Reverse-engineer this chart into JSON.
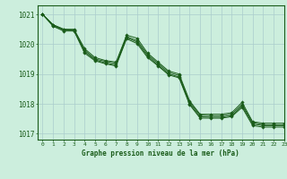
{
  "title": "Graphe pression niveau de la mer (hPa)",
  "bg_color": "#cceedd",
  "grid_color": "#aacccc",
  "line_color": "#1a5c1a",
  "xlim": [
    -0.5,
    23
  ],
  "ylim": [
    1016.8,
    1021.3
  ],
  "yticks": [
    1017,
    1018,
    1019,
    1020,
    1021
  ],
  "xticks": [
    0,
    1,
    2,
    3,
    4,
    5,
    6,
    7,
    8,
    9,
    10,
    11,
    12,
    13,
    14,
    15,
    16,
    17,
    18,
    19,
    20,
    21,
    22,
    23
  ],
  "series": [
    [
      1021.0,
      1020.65,
      1020.5,
      1020.5,
      1019.85,
      1019.55,
      1019.45,
      1019.4,
      1020.3,
      1020.2,
      1019.7,
      1019.4,
      1019.1,
      1019.0,
      1018.1,
      1017.65,
      1017.65,
      1017.65,
      1017.7,
      1018.05,
      1017.4,
      1017.35,
      1017.35,
      1017.35
    ],
    [
      1021.0,
      1020.65,
      1020.5,
      1020.45,
      1019.8,
      1019.5,
      1019.42,
      1019.35,
      1020.25,
      1020.12,
      1019.65,
      1019.35,
      1019.05,
      1018.95,
      1018.05,
      1017.62,
      1017.6,
      1017.6,
      1017.65,
      1017.98,
      1017.37,
      1017.3,
      1017.3,
      1017.3
    ],
    [
      1021.0,
      1020.62,
      1020.47,
      1020.47,
      1019.75,
      1019.47,
      1019.37,
      1019.3,
      1020.22,
      1020.07,
      1019.6,
      1019.3,
      1019.0,
      1018.9,
      1018.0,
      1017.57,
      1017.55,
      1017.55,
      1017.6,
      1017.93,
      1017.32,
      1017.27,
      1017.27,
      1017.27
    ],
    [
      1021.0,
      1020.6,
      1020.44,
      1020.44,
      1019.7,
      1019.44,
      1019.34,
      1019.27,
      1020.18,
      1020.02,
      1019.55,
      1019.27,
      1018.97,
      1018.87,
      1017.97,
      1017.52,
      1017.52,
      1017.52,
      1017.57,
      1017.88,
      1017.27,
      1017.22,
      1017.22,
      1017.22
    ]
  ]
}
